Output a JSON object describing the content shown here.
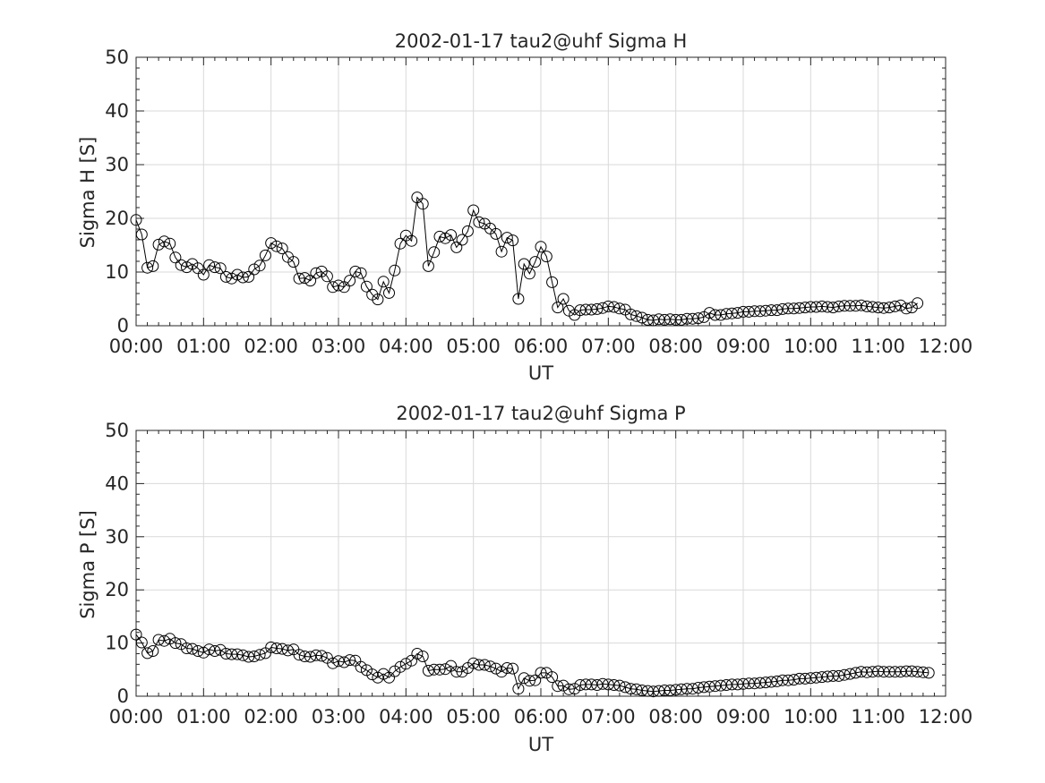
{
  "chart_data": [
    {
      "type": "line",
      "title": "2002-01-17  tau2@uhf Sigma H",
      "xlabel": "UT",
      "ylabel": "Sigma H [S]",
      "xlim": [
        "00:00",
        "12:00"
      ],
      "ylim": [
        0,
        50
      ],
      "x_ticks": [
        "00:00",
        "01:00",
        "02:00",
        "03:00",
        "04:00",
        "05:00",
        "06:00",
        "07:00",
        "08:00",
        "09:00",
        "10:00",
        "11:00",
        "12:00"
      ],
      "y_ticks": [
        "0",
        "10",
        "20",
        "30",
        "40",
        "50"
      ],
      "grid": true,
      "marker": "open-circle",
      "color": "#000000",
      "x_interval_minutes": 5,
      "series": [
        {
          "values": [
            19.7,
            17.0,
            10.8,
            11.1,
            15.1,
            15.7,
            15.3,
            12.7,
            11.3,
            10.9,
            11.5,
            10.7,
            9.5,
            11.3,
            10.9,
            10.7,
            9.1,
            8.8,
            9.5,
            9.0,
            9.1,
            10.5,
            11.2,
            13.1,
            15.4,
            14.8,
            14.4,
            12.8,
            11.9,
            8.8,
            8.9,
            8.4,
            9.8,
            10.1,
            9.2,
            7.2,
            7.5,
            7.2,
            8.4,
            10.1,
            9.8,
            7.3,
            5.8,
            4.9,
            8.2,
            6.1,
            10.3,
            15.3,
            16.8,
            15.8,
            23.9,
            22.7,
            11.1,
            13.7,
            16.6,
            16.3,
            16.9,
            14.6,
            16.0,
            17.6,
            21.5,
            19.3,
            19.0,
            18.1,
            17.1,
            13.8,
            16.4,
            15.9,
            5.0,
            11.5,
            9.7,
            11.9,
            14.7,
            12.9,
            8.1,
            3.4,
            5.0,
            2.8,
            2.0,
            2.9,
            3.0,
            3.0,
            3.1,
            3.3,
            3.6,
            3.5,
            3.2,
            3.0,
            2.1,
            1.8,
            1.5,
            1.1,
            1.0,
            1.2,
            1.1,
            1.2,
            1.1,
            1.1,
            1.3,
            1.3,
            1.4,
            1.6,
            2.4,
            2.0,
            2.0,
            2.2,
            2.3,
            2.4,
            2.6,
            2.6,
            2.7,
            2.7,
            2.8,
            2.9,
            2.9,
            3.1,
            3.2,
            3.2,
            3.3,
            3.4,
            3.5,
            3.5,
            3.6,
            3.5,
            3.4,
            3.6,
            3.7,
            3.7,
            3.7,
            3.8,
            3.6,
            3.5,
            3.4,
            3.3,
            3.4,
            3.6,
            3.8,
            3.2,
            3.4,
            4.2
          ]
        }
      ]
    },
    {
      "type": "line",
      "title": "2002-01-17  tau2@uhf Sigma P",
      "xlabel": "UT",
      "ylabel": "Sigma P [S]",
      "xlim": [
        "00:00",
        "12:00"
      ],
      "ylim": [
        0,
        50
      ],
      "x_ticks": [
        "00:00",
        "01:00",
        "02:00",
        "03:00",
        "04:00",
        "05:00",
        "06:00",
        "07:00",
        "08:00",
        "09:00",
        "10:00",
        "11:00",
        "12:00"
      ],
      "y_ticks": [
        "0",
        "10",
        "20",
        "30",
        "40",
        "50"
      ],
      "grid": true,
      "marker": "open-circle",
      "color": "#000000",
      "x_interval_minutes": 5,
      "series": [
        {
          "values": [
            11.6,
            10.1,
            8.1,
            8.5,
            10.6,
            10.4,
            10.8,
            10.0,
            9.8,
            9.0,
            8.9,
            8.5,
            8.2,
            8.8,
            8.5,
            8.7,
            8.0,
            7.9,
            7.9,
            7.7,
            7.4,
            7.5,
            7.8,
            8.1,
            9.2,
            9.0,
            8.9,
            8.6,
            8.8,
            7.8,
            7.5,
            7.4,
            7.7,
            7.6,
            7.2,
            6.2,
            6.6,
            6.4,
            6.8,
            6.7,
            5.5,
            4.9,
            4.1,
            3.5,
            4.2,
            3.5,
            4.7,
            5.5,
            6.1,
            6.7,
            8.0,
            7.5,
            4.8,
            5.0,
            5.0,
            5.1,
            5.7,
            4.6,
            4.6,
            5.3,
            6.2,
            5.9,
            5.9,
            5.6,
            5.2,
            4.6,
            5.3,
            5.2,
            1.4,
            3.4,
            2.9,
            3.0,
            4.4,
            4.4,
            3.6,
            1.9,
            2.0,
            1.3,
            1.4,
            2.1,
            2.2,
            2.2,
            2.1,
            2.3,
            2.2,
            2.1,
            2.0,
            1.7,
            1.4,
            1.3,
            1.1,
            1.0,
            0.9,
            1.0,
            1.1,
            1.1,
            1.2,
            1.3,
            1.4,
            1.4,
            1.6,
            1.7,
            1.8,
            1.9,
            2.0,
            2.1,
            2.2,
            2.2,
            2.3,
            2.4,
            2.4,
            2.5,
            2.6,
            2.7,
            2.8,
            3.0,
            3.0,
            3.1,
            3.3,
            3.3,
            3.4,
            3.5,
            3.6,
            3.7,
            3.8,
            3.8,
            4.0,
            4.2,
            4.4,
            4.6,
            4.5,
            4.6,
            4.7,
            4.6,
            4.6,
            4.6,
            4.6,
            4.7,
            4.7,
            4.6,
            4.5,
            4.4
          ]
        }
      ]
    }
  ]
}
